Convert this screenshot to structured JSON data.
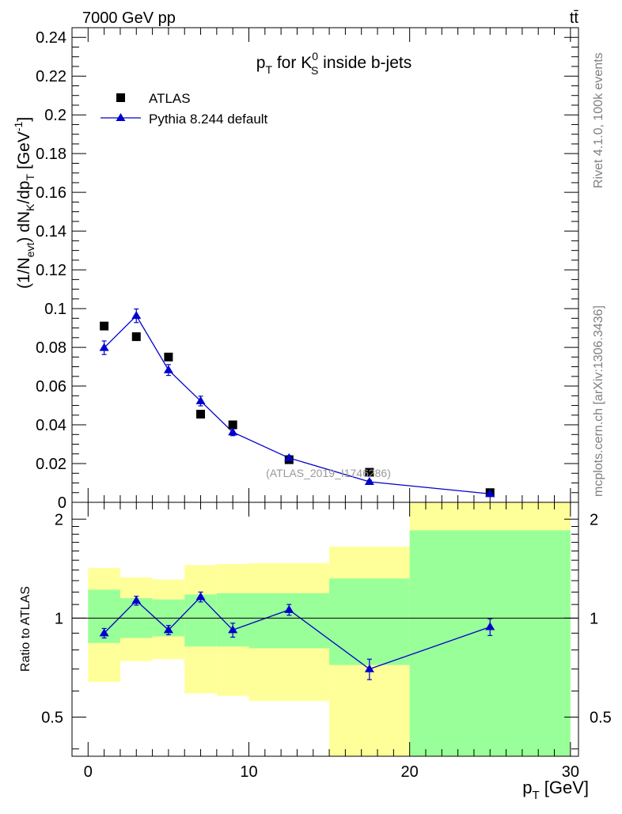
{
  "chart_data": {
    "type": "scatter",
    "header_left": "7000 GeV pp",
    "header_right": "tt̄",
    "title": {
      "p": "p",
      "T": "T",
      "mid": " for K",
      "sup": "0",
      "sub": "S",
      "end": " inside b-jets"
    },
    "side_label_top": "Rivet 4.1.0,  100k events",
    "side_label_bottom": "mcplots.cern.ch [arXiv:1306.3436]",
    "watermark": "(ATLAS_2019_I1746286)",
    "ylabel": {
      "a": "(1/N",
      "b": "evt",
      "c": ") dN",
      "d": "K",
      "e": "/dp",
      "f": "T",
      "g": " [GeV",
      "h": "-1",
      "i": "]"
    },
    "xlabel": {
      "p": "p",
      "T": "T",
      "rest": " [GeV]"
    },
    "ratio_ylabel": "Ratio to ATLAS",
    "xlim": [
      -1,
      30.5
    ],
    "ylim": [
      0,
      0.245
    ],
    "ratio_ylim": [
      0.38,
      2.25
    ],
    "x_ticks": [
      0,
      10,
      20,
      30
    ],
    "y_ticks": [
      0.02,
      0.04,
      0.06,
      0.08,
      0.1,
      0.12,
      0.14,
      0.16,
      0.18,
      0.2,
      0.22,
      0.24
    ],
    "y_tick_labels": [
      "0.02",
      "0.04",
      "0.06",
      "0.08",
      "0.1",
      "0.12",
      "0.14",
      "0.16",
      "0.18",
      "0.2",
      "0.22",
      "0.24"
    ],
    "y_zero_label": "0",
    "ratio_ticks": [
      0.5,
      1,
      2
    ],
    "ratio_tick_labels": [
      "0.5",
      "1",
      "2"
    ],
    "bins": [
      [
        0,
        2
      ],
      [
        2,
        4
      ],
      [
        4,
        6
      ],
      [
        6,
        8
      ],
      [
        8,
        10
      ],
      [
        10,
        15
      ],
      [
        15,
        20
      ],
      [
        20,
        30
      ]
    ],
    "legend": [
      {
        "label": "ATLAS",
        "marker": "square",
        "color": "#000000"
      },
      {
        "label": "Pythia 8.244 default",
        "marker": "triangle",
        "color": "#0000cc"
      }
    ],
    "series": [
      {
        "name": "ATLAS",
        "x": [
          1,
          3,
          5,
          7,
          9,
          12.5,
          17.5,
          25
        ],
        "values": [
          0.091,
          0.0855,
          0.075,
          0.0455,
          0.04,
          0.022,
          0.0155,
          0.005
        ]
      },
      {
        "name": "Pythia 8.244 default",
        "x": [
          1,
          3,
          5,
          7,
          9,
          12.5,
          17.5,
          25
        ],
        "values": [
          0.0798,
          0.0963,
          0.0683,
          0.0523,
          0.0362,
          0.0229,
          0.0106,
          0.0044
        ],
        "errors": [
          0.0035,
          0.0035,
          0.0028,
          0.0025,
          0.0018,
          0.0012,
          0.0008,
          0.0004
        ]
      }
    ],
    "ratio": {
      "x": [
        1,
        3,
        5,
        7,
        9,
        12.5,
        17.5,
        25
      ],
      "values": [
        0.9,
        1.13,
        0.92,
        1.16,
        0.92,
        1.06,
        0.7,
        0.94
      ],
      "errors": [
        0.03,
        0.035,
        0.03,
        0.04,
        0.045,
        0.04,
        0.05,
        0.055
      ],
      "band_stat": [
        [
          0.84,
          1.22
        ],
        [
          0.87,
          1.15
        ],
        [
          0.88,
          1.14
        ],
        [
          0.82,
          1.18
        ],
        [
          0.82,
          1.19
        ],
        [
          0.81,
          1.19
        ],
        [
          0.72,
          1.32
        ],
        [
          0.38,
          1.85
        ]
      ],
      "band_total": [
        [
          0.64,
          1.42
        ],
        [
          0.74,
          1.33
        ],
        [
          0.75,
          1.31
        ],
        [
          0.59,
          1.45
        ],
        [
          0.58,
          1.46
        ],
        [
          0.56,
          1.47
        ],
        [
          0.38,
          1.65
        ],
        [
          0.38,
          2.25
        ]
      ]
    },
    "colors": {
      "stat_band": "#99ff99",
      "total_band": "#ffff99",
      "mc": "#0000cc",
      "data": "#000000",
      "side_text": "#808080",
      "watermark": "#999999"
    }
  }
}
